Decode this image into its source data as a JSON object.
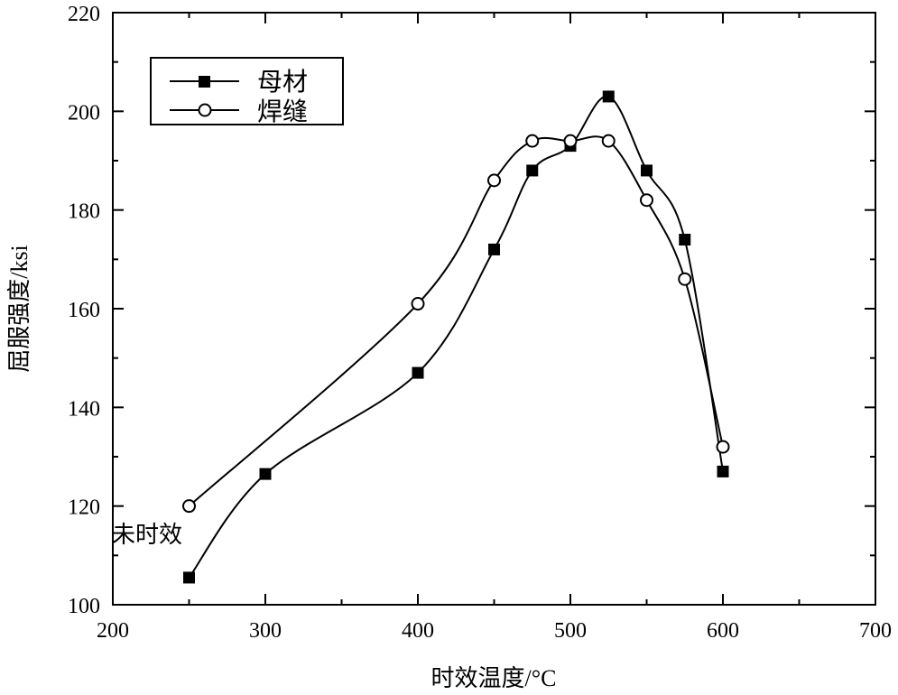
{
  "chart_data": {
    "type": "line",
    "title": "",
    "xlabel": "时效温度/°C",
    "ylabel": "屈服强度/ksi",
    "xlim": [
      200,
      700
    ],
    "ylim": [
      100,
      220
    ],
    "xticks": [
      200,
      300,
      400,
      500,
      600,
      700
    ],
    "yticks": [
      100,
      120,
      140,
      160,
      180,
      200,
      220
    ],
    "grid": false,
    "legend_position": "top-left",
    "annotation": "未时效",
    "series": [
      {
        "name": "母材",
        "marker": "filled-square",
        "x": [
          250,
          300,
          400,
          450,
          475,
          500,
          525,
          550,
          575,
          600
        ],
        "y": [
          105.5,
          126.5,
          147,
          172,
          188,
          193,
          203,
          188,
          174,
          127
        ]
      },
      {
        "name": "焊缝",
        "marker": "open-circle",
        "x": [
          250,
          400,
          450,
          475,
          500,
          525,
          550,
          575,
          600
        ],
        "y": [
          120,
          161,
          186,
          194,
          194,
          194,
          182,
          166,
          132
        ]
      }
    ]
  }
}
